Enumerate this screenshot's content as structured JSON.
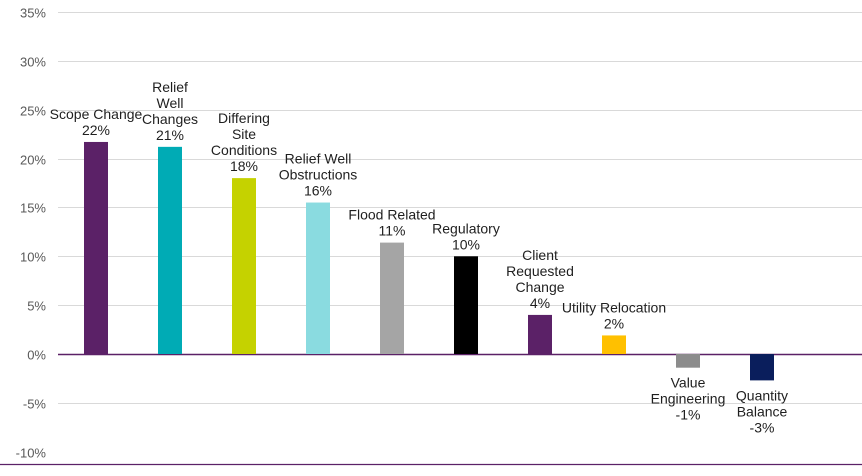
{
  "chart_data": {
    "type": "bar",
    "title": "",
    "xlabel": "",
    "ylabel": "",
    "ylim": [
      -10,
      35
    ],
    "y_ticks": [
      "35%",
      "30%",
      "25%",
      "20%",
      "15%",
      "10%",
      "5%",
      "0%",
      "-5%",
      "-10%"
    ],
    "y_tick_values": [
      35,
      30,
      25,
      20,
      15,
      10,
      5,
      0,
      -5,
      -10
    ],
    "grid": true,
    "legend": "none",
    "bars": [
      {
        "category": "Scope Change",
        "label_lines": [
          "Scope Change",
          "22%"
        ],
        "value": 21.7,
        "color": "#5b2167"
      },
      {
        "category": "Relief Well Changes",
        "label_lines": [
          "Relief",
          "Well",
          "Changes",
          "21%"
        ],
        "value": 21.2,
        "color": "#00abb5"
      },
      {
        "category": "Differing Site Conditions",
        "label_lines": [
          "Differing",
          "Site",
          "Conditions",
          "18%"
        ],
        "value": 18.0,
        "color": "#c5d200"
      },
      {
        "category": "Relief Well Obstructions",
        "label_lines": [
          "Relief Well",
          "Obstructions",
          "16%"
        ],
        "value": 15.5,
        "color": "#8adbe0"
      },
      {
        "category": "Flood Related",
        "label_lines": [
          "Flood Related",
          "11%"
        ],
        "value": 11.4,
        "color": "#a5a5a5"
      },
      {
        "category": "Regulatory",
        "label_lines": [
          "Regulatory",
          "10%"
        ],
        "value": 10.0,
        "color": "#000000"
      },
      {
        "category": "Client Requested Change",
        "label_lines": [
          "Client",
          "Requested",
          "Change",
          "4%"
        ],
        "value": 4.0,
        "color": "#5b2167"
      },
      {
        "category": "Utility Relocation",
        "label_lines": [
          "Utility Relocation",
          "2%"
        ],
        "value": 1.9,
        "color": "#ffc000"
      },
      {
        "category": "Value Engineering",
        "label_lines": [
          "Value",
          "Engineering",
          "-1%"
        ],
        "value": -1.4,
        "color": "#8c8c8c"
      },
      {
        "category": "Quantity Balance",
        "label_lines": [
          "Quantity",
          "Balance",
          "-3%"
        ],
        "value": -2.7,
        "color": "#0a1e5c"
      }
    ],
    "colors": {
      "zero_line": "#5b2167",
      "grid": "#d9d9d9",
      "bottom_axis": "#5b2167"
    }
  }
}
